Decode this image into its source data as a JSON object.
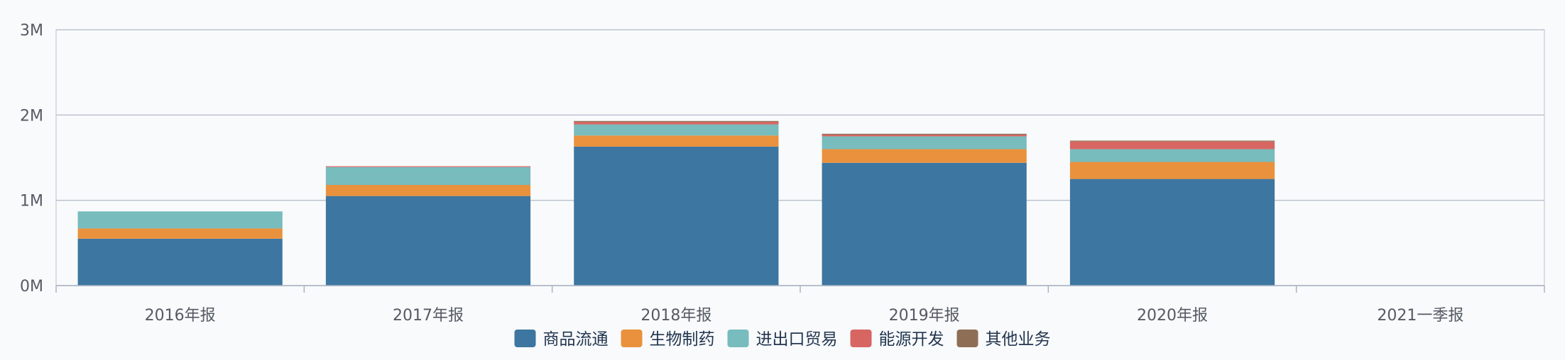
{
  "chart_data": {
    "type": "bar",
    "stacked": true,
    "categories": [
      "2016年报",
      "2017年报",
      "2018年报",
      "2019年报",
      "2020年报",
      "2021一季报"
    ],
    "series": [
      {
        "name": "商品流通",
        "color": "#3d76a0",
        "values": [
          0.55,
          1.05,
          1.63,
          1.44,
          1.25,
          0
        ]
      },
      {
        "name": "生物制药",
        "color": "#ea913d",
        "values": [
          0.12,
          0.13,
          0.13,
          0.16,
          0.2,
          0
        ]
      },
      {
        "name": "进出口贸易",
        "color": "#78bcbd",
        "values": [
          0.2,
          0.21,
          0.13,
          0.15,
          0.15,
          0
        ]
      },
      {
        "name": "能源开发",
        "color": "#d76663",
        "values": [
          0.0,
          0.01,
          0.03,
          0.02,
          0.09,
          0
        ]
      },
      {
        "name": "其他业务",
        "color": "#8e6f55",
        "values": [
          0.0,
          0.0,
          0.01,
          0.01,
          0.01,
          0
        ]
      }
    ],
    "yticks": [
      "0M",
      "1M",
      "2M",
      "3M"
    ],
    "ylim": [
      0,
      3
    ],
    "ylabel": "",
    "xlabel": "",
    "grid": true,
    "legend_position": "bottom-center"
  }
}
